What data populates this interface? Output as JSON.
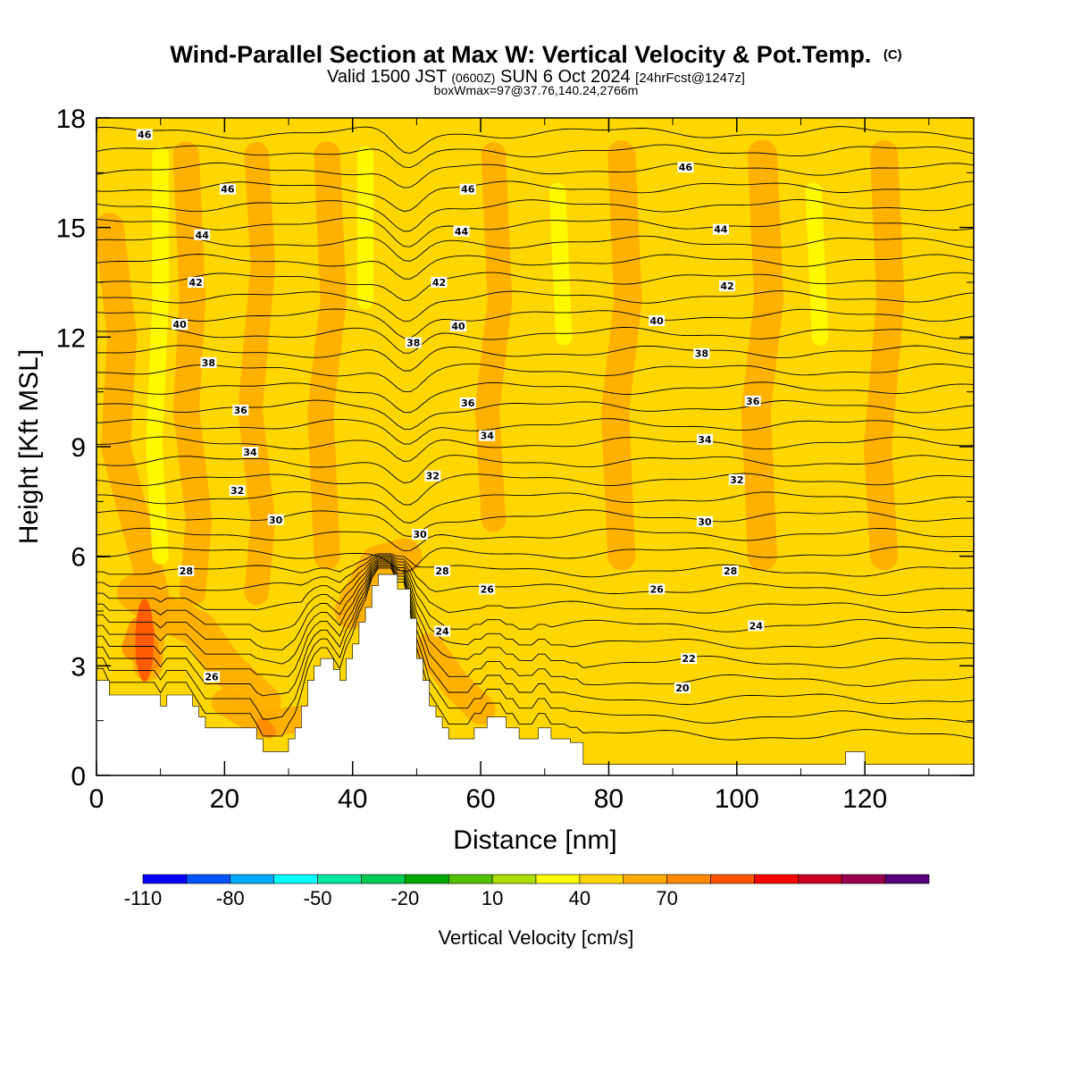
{
  "header": {
    "title": "Wind-Parallel Section at Max W: Vertical Velocity & Pot.Temp.",
    "copyright": "(C)",
    "valid_prefix": "Valid 1500 JST",
    "valid_zulu": "(0600Z)",
    "valid_date": "SUN 6 Oct 2024",
    "forecast": "[24hrFcst@1247z]",
    "boxinfo": "boxWmax=97@37.76,140.24,2766m"
  },
  "chart_data": {
    "type": "heatmap",
    "xlabel": "Distance [nm]",
    "ylabel": "Height [Kft MSL]",
    "xlim": [
      0,
      137
    ],
    "ylim": [
      0,
      18
    ],
    "x_ticks": [
      0,
      20,
      40,
      60,
      80,
      100,
      120
    ],
    "y_ticks": [
      0,
      3,
      6,
      9,
      12,
      15,
      18
    ],
    "colorbar": {
      "label": "Vertical Velocity [cm/s]",
      "bounds": [
        -110,
        -95,
        -80,
        -65,
        -50,
        -35,
        -20,
        -5,
        10,
        25,
        40,
        55,
        70,
        85
      ],
      "tick_values": [
        -110,
        -80,
        -50,
        -20,
        10,
        40,
        70
      ],
      "colors": [
        "#0000ff",
        "#0055ff",
        "#00aaff",
        "#00ffff",
        "#00e8a0",
        "#00cc55",
        "#00aa00",
        "#55c000",
        "#aadd00",
        "#ffff00",
        "#ffd700",
        "#ffaa00",
        "#ff8800",
        "#ff5500",
        "#ff0000",
        "#cc0022",
        "#99004d",
        "#55007a"
      ]
    },
    "terrain_kft": [
      [
        0,
        2.6
      ],
      [
        2,
        2.6
      ],
      [
        2,
        2.2
      ],
      [
        10,
        2.2
      ],
      [
        10,
        1.9
      ],
      [
        11,
        1.9
      ],
      [
        11,
        2.2
      ],
      [
        15,
        2.2
      ],
      [
        15,
        1.9
      ],
      [
        16,
        1.9
      ],
      [
        16,
        1.6
      ],
      [
        17,
        1.6
      ],
      [
        17,
        1.3
      ],
      [
        25,
        1.3
      ],
      [
        25,
        1.0
      ],
      [
        26,
        1.0
      ],
      [
        26,
        0.65
      ],
      [
        30,
        0.65
      ],
      [
        30,
        1.0
      ],
      [
        31,
        1.0
      ],
      [
        31,
        1.3
      ],
      [
        32,
        1.3
      ],
      [
        32,
        1.9
      ],
      [
        33,
        1.9
      ],
      [
        33,
        2.6
      ],
      [
        34,
        2.6
      ],
      [
        34,
        3.0
      ],
      [
        35,
        3.0
      ],
      [
        35,
        3.2
      ],
      [
        37,
        3.2
      ],
      [
        37,
        2.9
      ],
      [
        38,
        2.9
      ],
      [
        38,
        2.6
      ],
      [
        39,
        2.6
      ],
      [
        39,
        3.2
      ],
      [
        40,
        3.2
      ],
      [
        40,
        3.6
      ],
      [
        41,
        3.6
      ],
      [
        41,
        4.2
      ],
      [
        42,
        4.2
      ],
      [
        42,
        4.6
      ],
      [
        43,
        4.6
      ],
      [
        43,
        5.2
      ],
      [
        44,
        5.2
      ],
      [
        44,
        5.5
      ],
      [
        47,
        5.5
      ],
      [
        47,
        5.1
      ],
      [
        49,
        5.1
      ],
      [
        49,
        4.3
      ],
      [
        50,
        4.3
      ],
      [
        50,
        3.2
      ],
      [
        51,
        3.2
      ],
      [
        51,
        2.6
      ],
      [
        52,
        2.6
      ],
      [
        52,
        1.9
      ],
      [
        53,
        1.9
      ],
      [
        53,
        1.6
      ],
      [
        54,
        1.6
      ],
      [
        54,
        1.3
      ],
      [
        55,
        1.3
      ],
      [
        55,
        1.0
      ],
      [
        59,
        1.0
      ],
      [
        59,
        1.3
      ],
      [
        61,
        1.3
      ],
      [
        61,
        1.6
      ],
      [
        64,
        1.6
      ],
      [
        64,
        1.3
      ],
      [
        66,
        1.3
      ],
      [
        66,
        1.0
      ],
      [
        69,
        1.0
      ],
      [
        69,
        1.3
      ],
      [
        71,
        1.3
      ],
      [
        71,
        1.0
      ],
      [
        74,
        1.0
      ],
      [
        74,
        0.9
      ],
      [
        76,
        0.9
      ],
      [
        76,
        0.3
      ],
      [
        117,
        0.3
      ],
      [
        117,
        0.65
      ],
      [
        120,
        0.65
      ],
      [
        120,
        0.3
      ],
      [
        137,
        0.3
      ]
    ],
    "theta_contour_labels": [
      {
        "value": 46,
        "x": 7.5,
        "y": 17.55
      },
      {
        "value": 46,
        "x": 20.5,
        "y": 16.05
      },
      {
        "value": 46,
        "x": 58,
        "y": 16.05
      },
      {
        "value": 46,
        "x": 92,
        "y": 16.65
      },
      {
        "value": 44,
        "x": 16.5,
        "y": 14.8
      },
      {
        "value": 44,
        "x": 57,
        "y": 14.9
      },
      {
        "value": 44,
        "x": 97.5,
        "y": 14.95
      },
      {
        "value": 42,
        "x": 15.5,
        "y": 13.5
      },
      {
        "value": 42,
        "x": 53.5,
        "y": 13.5
      },
      {
        "value": 42,
        "x": 98.5,
        "y": 13.4
      },
      {
        "value": 40,
        "x": 13,
        "y": 12.35
      },
      {
        "value": 40,
        "x": 56.5,
        "y": 12.3
      },
      {
        "value": 40,
        "x": 87.5,
        "y": 12.45
      },
      {
        "value": 38,
        "x": 17.5,
        "y": 11.3
      },
      {
        "value": 38,
        "x": 49.5,
        "y": 11.85
      },
      {
        "value": 38,
        "x": 94.5,
        "y": 11.55
      },
      {
        "value": 36,
        "x": 22.5,
        "y": 10.0
      },
      {
        "value": 36,
        "x": 58,
        "y": 10.2
      },
      {
        "value": 36,
        "x": 102.5,
        "y": 10.25
      },
      {
        "value": 34,
        "x": 24,
        "y": 8.85
      },
      {
        "value": 34,
        "x": 61,
        "y": 9.3
      },
      {
        "value": 34,
        "x": 95,
        "y": 9.2
      },
      {
        "value": 32,
        "x": 22,
        "y": 7.8
      },
      {
        "value": 32,
        "x": 52.5,
        "y": 8.2
      },
      {
        "value": 32,
        "x": 100,
        "y": 8.1
      },
      {
        "value": 30,
        "x": 28,
        "y": 7.0
      },
      {
        "value": 30,
        "x": 50.5,
        "y": 6.6
      },
      {
        "value": 30,
        "x": 95,
        "y": 6.95
      },
      {
        "value": 28,
        "x": 14,
        "y": 5.6
      },
      {
        "value": 28,
        "x": 54,
        "y": 5.6
      },
      {
        "value": 28,
        "x": 99,
        "y": 5.6
      },
      {
        "value": 26,
        "x": 61,
        "y": 5.1
      },
      {
        "value": 26,
        "x": 87.5,
        "y": 5.1
      },
      {
        "value": 26,
        "x": 18,
        "y": 2.7
      },
      {
        "value": 24,
        "x": 54,
        "y": 3.95
      },
      {
        "value": 24,
        "x": 103,
        "y": 4.1
      },
      {
        "value": 22,
        "x": 92.5,
        "y": 3.2
      },
      {
        "value": 20,
        "x": 91.5,
        "y": 2.4
      }
    ]
  }
}
